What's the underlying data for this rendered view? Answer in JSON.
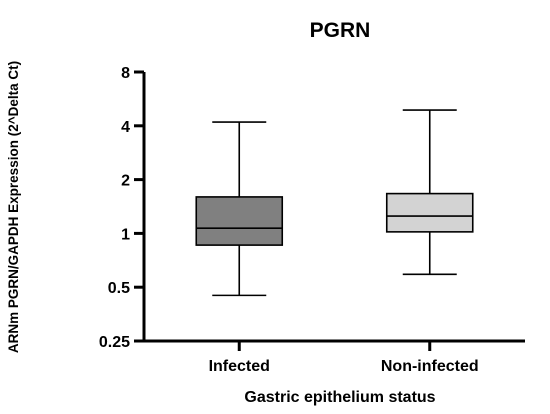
{
  "chart_data": {
    "type": "box",
    "title": "PGRN",
    "xlabel": "Gastric epithelium status",
    "ylabel": "ARNm PGRN/GAPDH Expression (2^Delta Ct)",
    "y_scale": "log2",
    "ylim": [
      0.25,
      8
    ],
    "yticks": [
      {
        "value": 0.25,
        "label": "0.25"
      },
      {
        "value": 0.5,
        "label": "0.5"
      },
      {
        "value": 1,
        "label": "1"
      },
      {
        "value": 2,
        "label": "2"
      },
      {
        "value": 4,
        "label": "4"
      },
      {
        "value": 8,
        "label": "8"
      }
    ],
    "categories": [
      "Infected",
      "Non-infected"
    ],
    "boxes": [
      {
        "category": "Infected",
        "min": 0.45,
        "q1": 0.86,
        "median": 1.07,
        "q3": 1.6,
        "max": 4.2,
        "color": "#808080"
      },
      {
        "category": "Non-infected",
        "min": 0.59,
        "q1": 1.02,
        "median": 1.25,
        "q3": 1.67,
        "max": 4.9,
        "color": "#d3d3d3"
      }
    ],
    "grid": false,
    "legend": "none"
  }
}
